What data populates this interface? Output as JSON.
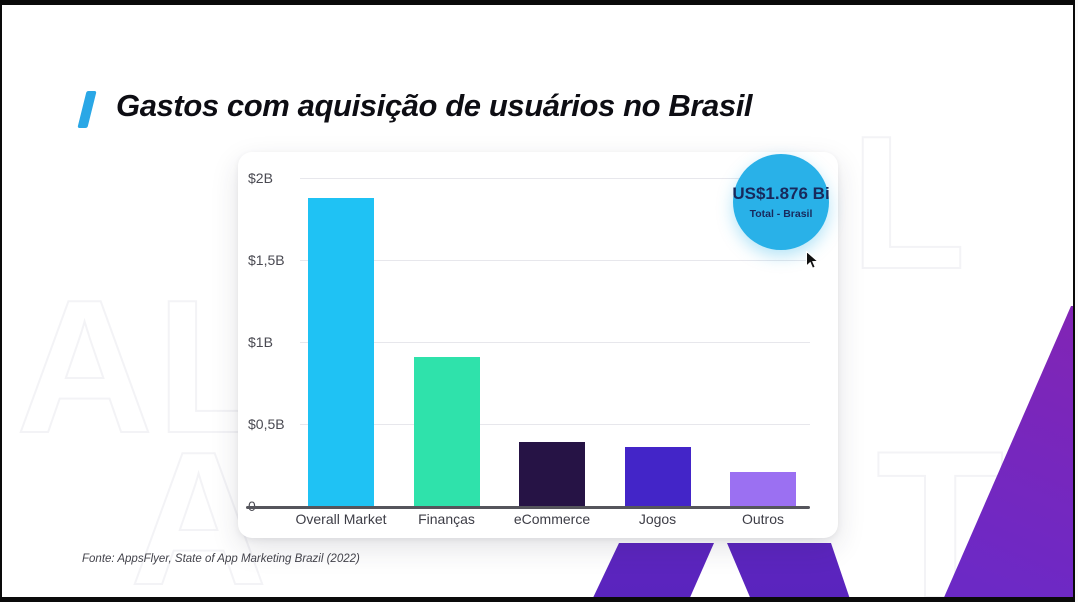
{
  "header": {
    "title": "Gastos com aquisição de usuários no Brasil"
  },
  "badge": {
    "value": "US$1.876 Bi",
    "caption": "Total - Brasil",
    "circle_color": "#29b1e8",
    "text_color": "#18295c"
  },
  "footer": {
    "source": "Fonte: AppsFlyer, State of App Marketing Brazil (2022)"
  },
  "watermark": {
    "letters": [
      "A",
      "L",
      "A",
      "L",
      "T"
    ]
  },
  "accent_color": "#2aa7e6",
  "chart_data": {
    "type": "bar",
    "title": "",
    "xlabel": "",
    "ylabel": "",
    "categories": [
      "Overall Market",
      "Finanças",
      "eCommerce",
      "Jogos",
      "Outros"
    ],
    "values": [
      1.876,
      0.91,
      0.39,
      0.36,
      0.21
    ],
    "unit": "US$ billions",
    "bar_colors": [
      "#1fc2f4",
      "#2fe2ab",
      "#261345",
      "#4325c8",
      "#9b70f2"
    ],
    "y_ticks": [
      {
        "label": "$2B",
        "value": 2
      },
      {
        "label": "$1,5B",
        "value": 1.5
      },
      {
        "label": "$1B",
        "value": 1
      },
      {
        "label": "$0,5B",
        "value": 0.5
      },
      {
        "label": "0",
        "value": 0
      }
    ],
    "ylim": [
      0,
      2
    ],
    "grid": true,
    "legend": "none",
    "annotation": {
      "text": "US$1.876 Bi",
      "subtext": "Total - Brasil"
    }
  }
}
